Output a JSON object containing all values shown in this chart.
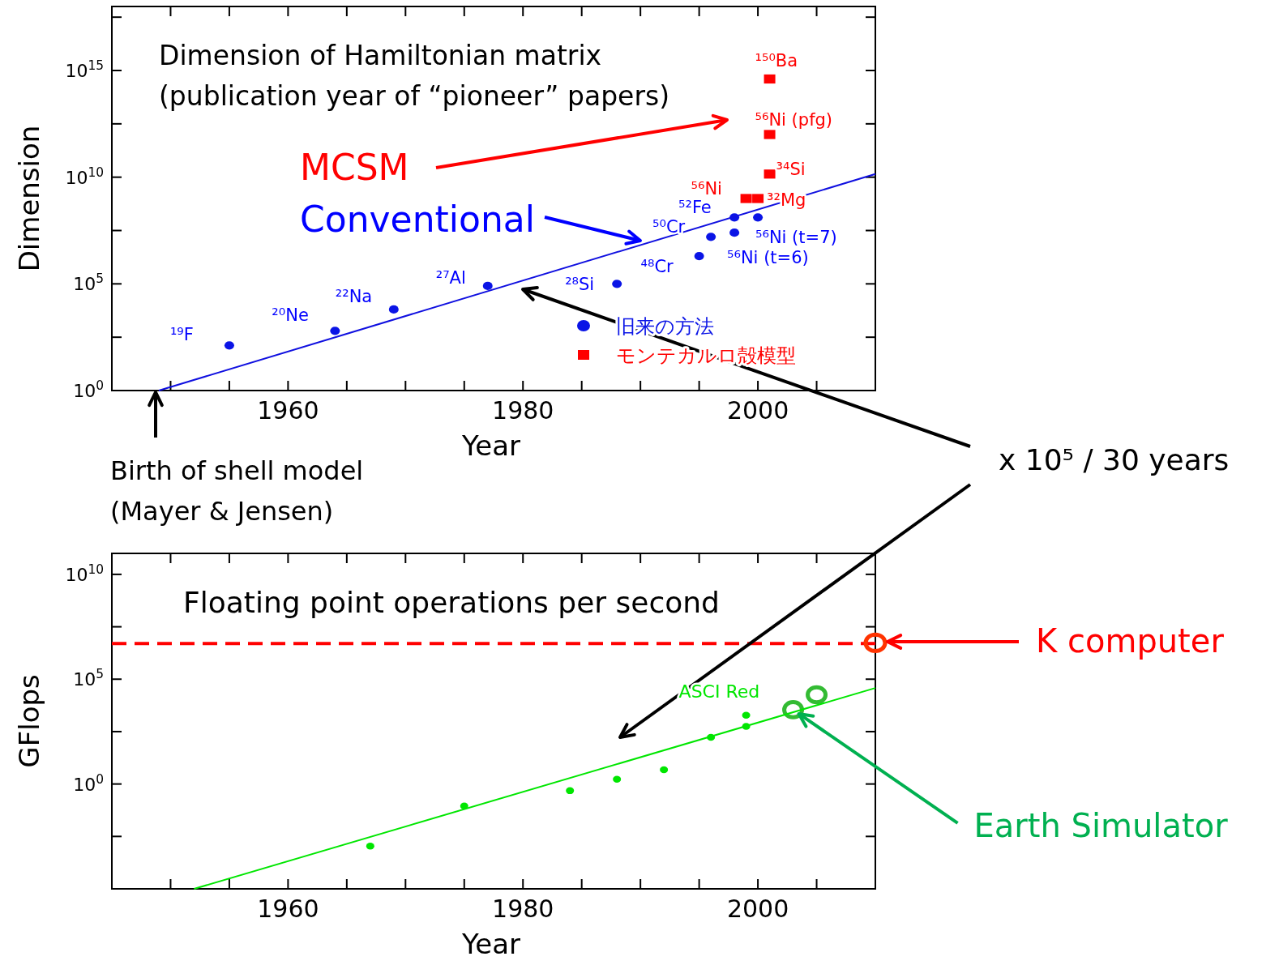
{
  "chart_data": [
    {
      "type": "scatter",
      "xlabel": "Year",
      "ylabel": "Dimension",
      "xlim": [
        1945,
        2010
      ],
      "ylim": [
        1,
        1e+18
      ],
      "log": true,
      "xticks": [
        {
          "value": 1950,
          "label": null
        },
        {
          "value": 1955,
          "label": null
        },
        1960,
        {
          "value": 1965,
          "label": null
        },
        {
          "value": 1970,
          "label": null
        },
        {
          "value": 1975,
          "label": null
        },
        1980,
        {
          "value": 1985,
          "label": null
        },
        {
          "value": 1990,
          "label": null
        },
        {
          "value": 1995,
          "label": null
        },
        2000,
        {
          "value": 2005,
          "label": null
        }
      ],
      "yticks": [
        {
          "value": 1,
          "label": "10$^{0}$"
        },
        {
          "value": 316,
          "label": null
        },
        {
          "value": 100000.0,
          "label": "10$^{5}$"
        },
        {
          "value": 31600000.0,
          "label": null
        },
        {
          "value": 10000000000.0,
          "label": "10$^{10}$"
        },
        {
          "value": 3160000000000.0,
          "label": null
        },
        {
          "value": 1000000000000000.0,
          "label": "10$^{15}$"
        },
        {
          "value": 3.16e+17,
          "label": null
        }
      ],
      "legend": "bottom right",
      "series": [
        {
          "name": "旧来の方法",
          "color": "#0a14e6",
          "marker": "circle",
          "x": [
            1955,
            1964,
            1969,
            1977,
            1988,
            1995,
            1996,
            1998,
            2000,
            1998
          ],
          "values": [
            130,
            630,
            6300,
            80000,
            100000,
            2000000,
            16000000,
            130000000,
            130000000,
            25000000
          ]
        },
        {
          "name": "モンテカルロ殻模型",
          "color": "#ff0000",
          "marker": "square",
          "x": [
            2001,
            2001,
            2001,
            1999,
            2000
          ],
          "values": [
            400000000000000.0,
            1000000000000.0,
            14000000000.0,
            1000000000.0,
            1000000000.0
          ]
        },
        {
          "type": "line",
          "color": "#1010e0",
          "marker": "none",
          "x": [
            1949,
            2010
          ],
          "values": [
            1,
            14000000000.0
          ]
        }
      ],
      "annotations": [
        "Dimension of Hamiltonian matrix",
        "(publication year of “pioneer” papers)",
        "MCSM",
        "Conventional",
        "Birth of shell model",
        "(Mayer & Jensen)",
        "x 10⁵ / 30 years",
        {
          "text": "¹⁹F",
          "x": 1955,
          "y": 130
        },
        {
          "text": "²⁰Ne",
          "x": 1964,
          "y": 630
        },
        {
          "text": "²²Na",
          "x": 1969,
          "y": 6300
        },
        {
          "text": "²⁷Al",
          "x": 1977,
          "y": 80000
        },
        {
          "text": "²⁸Si",
          "x": 1988,
          "y": 100000
        },
        {
          "text": "⁴⁸Cr",
          "x": 1995,
          "y": 2000000
        },
        {
          "text": "⁵⁰Cr",
          "x": 1996,
          "y": 16000000
        },
        {
          "text": "⁵²Fe",
          "x": 1998,
          "y": 130000000
        },
        {
          "text": "⁵⁶Ni (t=7)",
          "x": 2000,
          "y": 130000000
        },
        {
          "text": "⁵⁶Ni (t=6)",
          "x": 1998,
          "y": 25000000
        },
        {
          "text": "¹⁵⁰Ba",
          "x": 2001,
          "y": 400000000000000.0
        },
        {
          "text": "⁵⁶Ni (pfg)",
          "x": 2001,
          "y": 1000000000000.0
        },
        {
          "text": "³⁴Si",
          "x": 2001,
          "y": 14000000000.0
        },
        {
          "text": "⁵⁶Ni",
          "x": 1999,
          "y": 1000000000.0
        },
        {
          "text": "³²Mg",
          "x": 2000,
          "y": 1000000000.0
        }
      ]
    },
    {
      "type": "scatter",
      "xlabel": "Year",
      "ylabel": "GFlops",
      "xlim": [
        1945,
        2010
      ],
      "ylim": [
        1e-05,
        100000000000.0
      ],
      "log": true,
      "xticks": [
        {
          "value": 1950,
          "label": null
        },
        {
          "value": 1955,
          "label": null
        },
        1960,
        {
          "value": 1965,
          "label": null
        },
        {
          "value": 1970,
          "label": null
        },
        {
          "value": 1975,
          "label": null
        },
        1980,
        {
          "value": 1985,
          "label": null
        },
        {
          "value": 1990,
          "label": null
        },
        {
          "value": 1995,
          "label": null
        },
        2000,
        {
          "value": 2005,
          "label": null
        }
      ],
      "yticks": [
        {
          "value": 0.00316,
          "label": null
        },
        {
          "value": 1,
          "label": "10$^{0}$"
        },
        {
          "value": 316,
          "label": null
        },
        {
          "value": 100000.0,
          "label": "10$^{5}$"
        },
        {
          "value": 31600000.0,
          "label": null
        },
        {
          "value": 10000000000.0,
          "label": "10$^{10}$"
        }
      ],
      "marker": "circle",
      "series": [
        {
          "color": "#00e600",
          "x": [
            1967,
            1975,
            1984,
            1988,
            1992,
            1996,
            1999,
            1999
          ],
          "values": [
            0.0011,
            0.09,
            0.48,
            1.7,
            4.8,
            170,
            1900,
            560
          ]
        },
        {
          "color": "#33bb33",
          "x": [
            2003,
            2005
          ],
          "values": [
            3500,
            18000
          ]
        },
        {
          "color": "#ff3300",
          "x": [
            2010
          ],
          "values": [
            5400000
          ]
        },
        {
          "type": "line",
          "color": "#00e600",
          "marker": "none",
          "x": [
            1952,
            2010
          ],
          "values": [
            1e-05,
            38000
          ]
        }
      ],
      "ref_lines": [
        {
          "axis": "y",
          "value": 5000000,
          "color": "#ff0000",
          "line_style": "dashed"
        }
      ],
      "annotations": [
        "Floating point operations per second",
        {
          "text": "ASCI Red",
          "x": 1999,
          "y": 1900
        },
        "K computer",
        {
          "text": "Earth Simulator",
          "x": 2003,
          "y": 3500
        }
      ]
    }
  ]
}
